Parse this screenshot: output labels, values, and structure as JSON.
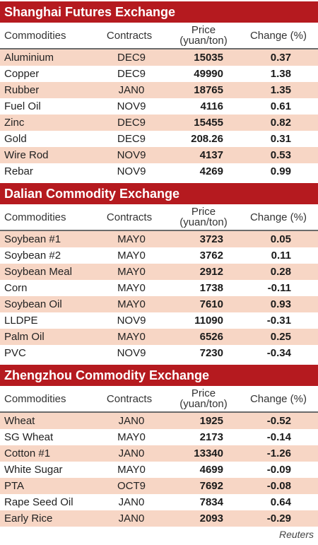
{
  "headers": {
    "commodities": "Commodities",
    "contracts": "Contracts",
    "price_line1": "Price",
    "price_line2": "(yuan/ton)",
    "change": "Change (%)"
  },
  "sections": [
    {
      "title": "Shanghai Futures Exchange",
      "rows": [
        {
          "name": "Aluminium",
          "contract": "DEC9",
          "price": "15035",
          "change": "0.37"
        },
        {
          "name": "Copper",
          "contract": "DEC9",
          "price": "49990",
          "change": "1.38"
        },
        {
          "name": "Rubber",
          "contract": "JAN0",
          "price": "18765",
          "change": "1.35"
        },
        {
          "name": "Fuel Oil",
          "contract": "NOV9",
          "price": "4116",
          "change": "0.61"
        },
        {
          "name": "Zinc",
          "contract": "DEC9",
          "price": "15455",
          "change": "0.82"
        },
        {
          "name": "Gold",
          "contract": "DEC9",
          "price": "208.26",
          "change": "0.31"
        },
        {
          "name": "Wire Rod",
          "contract": "NOV9",
          "price": "4137",
          "change": "0.53"
        },
        {
          "name": "Rebar",
          "contract": "NOV9",
          "price": "4269",
          "change": "0.99"
        }
      ]
    },
    {
      "title": "Dalian Commodity Exchange",
      "rows": [
        {
          "name": "Soybean #1",
          "contract": "MAY0",
          "price": "3723",
          "change": "0.05"
        },
        {
          "name": "Soybean #2",
          "contract": "MAY0",
          "price": "3762",
          "change": "0.11"
        },
        {
          "name": "Soybean Meal",
          "contract": "MAY0",
          "price": "2912",
          "change": "0.28"
        },
        {
          "name": "Corn",
          "contract": "MAY0",
          "price": "1738",
          "change": "-0.11"
        },
        {
          "name": "Soybean Oil",
          "contract": "MAY0",
          "price": "7610",
          "change": "0.93"
        },
        {
          "name": "LLDPE",
          "contract": "NOV9",
          "price": "11090",
          "change": "-0.31"
        },
        {
          "name": "Palm Oil",
          "contract": "MAY0",
          "price": "6526",
          "change": "0.25"
        },
        {
          "name": "PVC",
          "contract": "NOV9",
          "price": "7230",
          "change": "-0.34"
        }
      ]
    },
    {
      "title": "Zhengzhou Commodity Exchange",
      "rows": [
        {
          "name": "Wheat",
          "contract": "JAN0",
          "price": "1925",
          "change": "-0.52"
        },
        {
          "name": "SG Wheat",
          "contract": "MAY0",
          "price": "2173",
          "change": "-0.14"
        },
        {
          "name": "Cotton #1",
          "contract": "JAN0",
          "price": "13340",
          "change": "-1.26"
        },
        {
          "name": "White Sugar",
          "contract": "MAY0",
          "price": "4699",
          "change": "-0.09"
        },
        {
          "name": "PTA",
          "contract": "OCT9",
          "price": "7692",
          "change": "-0.08"
        },
        {
          "name": "Rape Seed Oil",
          "contract": "JAN0",
          "price": "7834",
          "change": "0.64"
        },
        {
          "name": "Early Rice",
          "contract": "JAN0",
          "price": "2093",
          "change": "-0.29"
        }
      ]
    }
  ],
  "source": "Reuters",
  "colors": {
    "header_bg": "#b51a1f",
    "alt_row": "#f7d6c5",
    "rule": "#6b6b6b"
  }
}
